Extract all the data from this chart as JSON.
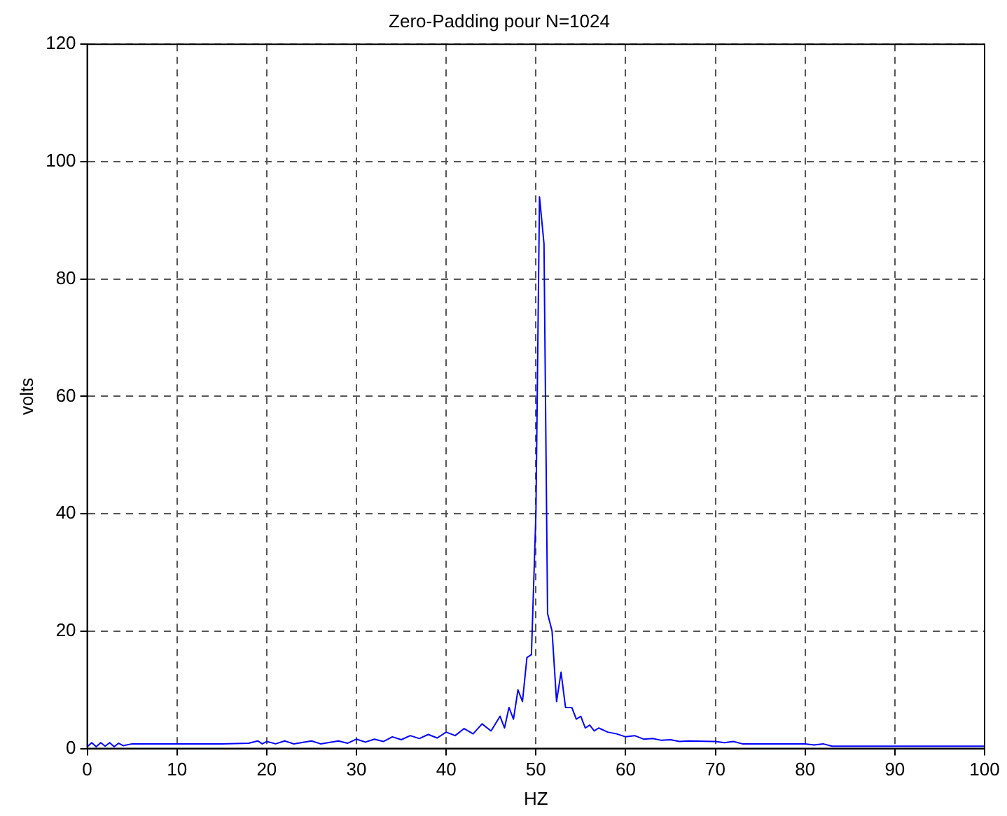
{
  "chart_data": {
    "type": "line",
    "title": "Zero-Padding pour N=1024",
    "xlabel": "HZ",
    "ylabel": "volts",
    "xlim": [
      0,
      100
    ],
    "xticks": [
      0,
      10,
      20,
      30,
      40,
      50,
      60,
      70,
      80,
      90,
      100
    ],
    "ylim": [
      0,
      120
    ],
    "yticks": [
      0,
      20,
      40,
      60,
      80,
      100,
      120
    ],
    "grid": true,
    "line_style": "solid",
    "series": [
      {
        "color": "#0000ff",
        "x": [
          0,
          0.5,
          1,
          1.5,
          2,
          2.5,
          3,
          3.5,
          4,
          5,
          7,
          10,
          15,
          18,
          19,
          19.5,
          20,
          21,
          22,
          23,
          25,
          26,
          28,
          29,
          30,
          31,
          32,
          33,
          34,
          35,
          36,
          37,
          38,
          39,
          40,
          41,
          42,
          43,
          44,
          45,
          46,
          46.5,
          47,
          47.5,
          48,
          48.5,
          49,
          49.5,
          50,
          50.4,
          50.9,
          51.3,
          51.8,
          52.3,
          52.8,
          53.3,
          54,
          54.5,
          55,
          55.5,
          56,
          56.5,
          57,
          58,
          59,
          60,
          61,
          62,
          63,
          64,
          65,
          66,
          67,
          70,
          71,
          72,
          73,
          80,
          81,
          82,
          83,
          100
        ],
        "values": [
          0.3,
          1,
          0.3,
          1,
          0.4,
          1,
          0.3,
          0.9,
          0.5,
          0.8,
          0.8,
          0.8,
          0.8,
          0.9,
          1.3,
          0.8,
          1.2,
          0.8,
          1.3,
          0.8,
          1.3,
          0.8,
          1.3,
          0.9,
          1.6,
          1.1,
          1.6,
          1.2,
          2,
          1.5,
          2.2,
          1.7,
          2.4,
          1.8,
          2.8,
          2.2,
          3.4,
          2.5,
          4.2,
          3,
          5.5,
          3.5,
          7,
          5,
          10,
          8,
          15.5,
          16,
          40,
          94,
          86,
          23,
          20,
          8,
          13,
          7,
          7,
          5,
          5.5,
          3.5,
          4,
          3,
          3.5,
          2.8,
          2.5,
          2,
          2.2,
          1.6,
          1.7,
          1.4,
          1.5,
          1.2,
          1.3,
          1.2,
          1,
          1.2,
          0.8,
          0.8,
          0.6,
          0.8,
          0.4,
          0.4
        ]
      }
    ]
  }
}
